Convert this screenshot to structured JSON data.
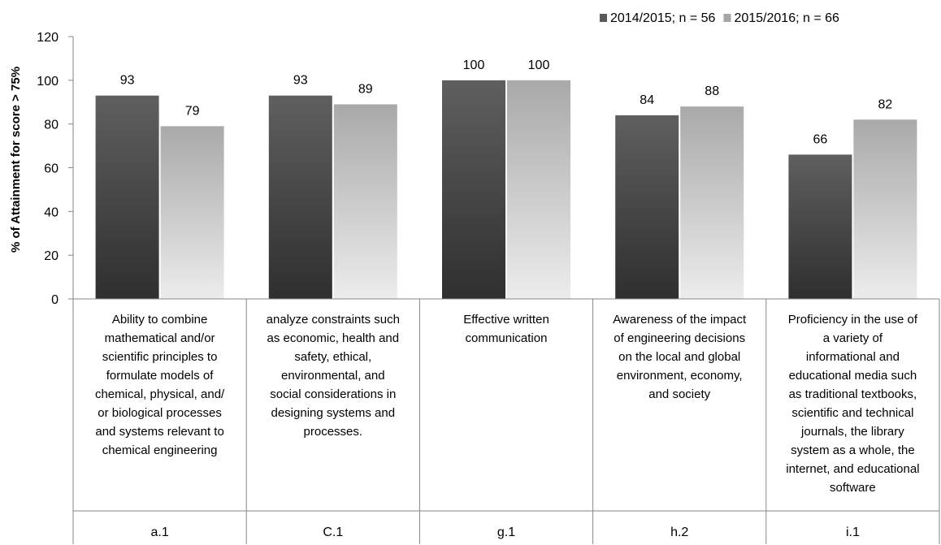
{
  "chart_data": {
    "type": "bar",
    "ylabel": "% of Attainment for score > 75%",
    "ylim": [
      0,
      120
    ],
    "yticks": [
      0,
      20,
      40,
      60,
      80,
      100,
      120
    ],
    "legend_position": "top-right",
    "grid": false,
    "categories": [
      {
        "code": "a.1",
        "lines": [
          "Ability to combine",
          "mathematical and/or",
          "scientific principles to",
          "formulate models of",
          "chemical, physical, and/",
          "or biological processes",
          "and systems relevant to",
          "chemical engineering"
        ]
      },
      {
        "code": "C.1",
        "lines": [
          "analyze constraints such",
          "as economic, health and",
          "safety, ethical,",
          "environmental, and",
          "social considerations in",
          "designing systems and",
          "processes."
        ]
      },
      {
        "code": "g.1",
        "lines": [
          "Effective written",
          "communication"
        ]
      },
      {
        "code": "h.2",
        "lines": [
          "Awareness of the impact",
          "of engineering decisions",
          "on the local and global",
          "environment, economy,",
          "and society"
        ]
      },
      {
        "code": "i.1",
        "lines": [
          "Proficiency in the use of",
          "a variety of",
          "informational and",
          "educational media such",
          "as traditional textbooks,",
          "scientific and technical",
          "journals, the library",
          "system as a whole, the",
          "internet, and educational",
          "software"
        ]
      }
    ],
    "series": [
      {
        "name": "2014/2015; n = 56",
        "color": "#595959",
        "values": [
          93,
          93,
          100,
          84,
          66
        ]
      },
      {
        "name": "2015/2016; n = 66",
        "color": "#a6a6a6",
        "values": [
          79,
          89,
          100,
          88,
          82
        ]
      }
    ]
  }
}
